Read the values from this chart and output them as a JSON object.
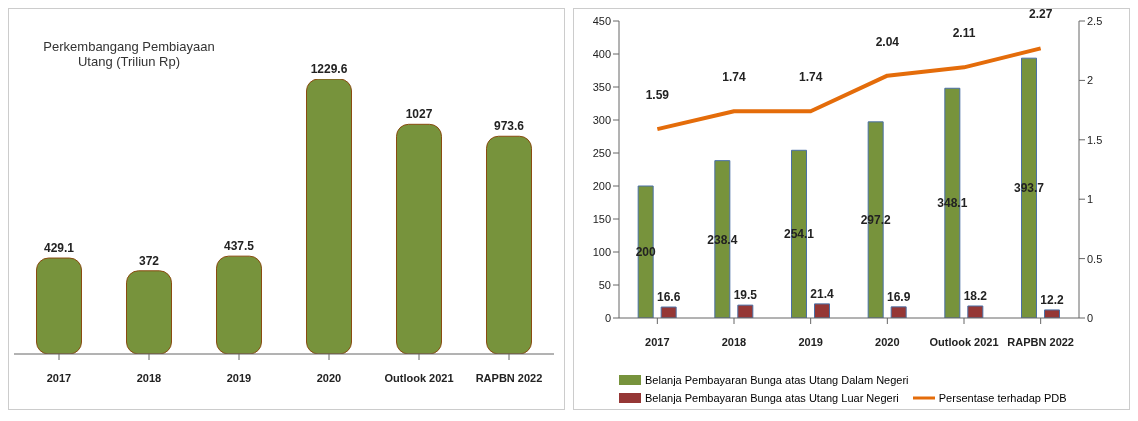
{
  "chart_data": [
    {
      "type": "bar",
      "title": "Perkembangang Pembiayaan Utang (Triliun Rp)",
      "categories": [
        "2017",
        "2018",
        "2019",
        "2020",
        "Outlook 2021",
        "RAPBN 2022"
      ],
      "values": [
        429.1,
        372,
        437.5,
        1229.6,
        1027,
        973.6
      ],
      "color": "#77933c",
      "data_labels": true,
      "grid": false,
      "legend": false
    },
    {
      "type": "bar",
      "categories": [
        "2017",
        "2018",
        "2019",
        "2020",
        "Outlook 2021",
        "RAPBN 2022"
      ],
      "series": [
        {
          "name": "Belanja Pembayaran Bunga atas Utang Dalam Negeri",
          "color": "#77933c",
          "values": [
            200,
            238.4,
            254.1,
            297.2,
            348.1,
            393.7
          ]
        },
        {
          "name": "Belanja Pembayaran Bunga atas Utang Luar Negeri",
          "color": "#953735",
          "values": [
            16.6,
            19.5,
            21.4,
            16.9,
            18.2,
            12.2
          ]
        },
        {
          "name": "Persentase terhadap PDB",
          "type": "line",
          "axis": "y2",
          "color": "#e46c0a",
          "values": [
            1.59,
            1.74,
            1.74,
            2.04,
            2.11,
            2.27
          ]
        }
      ],
      "ylim": [
        0,
        450
      ],
      "yticks": [
        0,
        50,
        100,
        150,
        200,
        250,
        300,
        350,
        400,
        450
      ],
      "y2lim": [
        0,
        2.5
      ],
      "y2ticks": [
        0,
        0.5,
        1,
        1.5,
        2,
        2.5
      ],
      "data_labels": true,
      "grid": false,
      "legend": "bottom",
      "marker": "none"
    }
  ]
}
